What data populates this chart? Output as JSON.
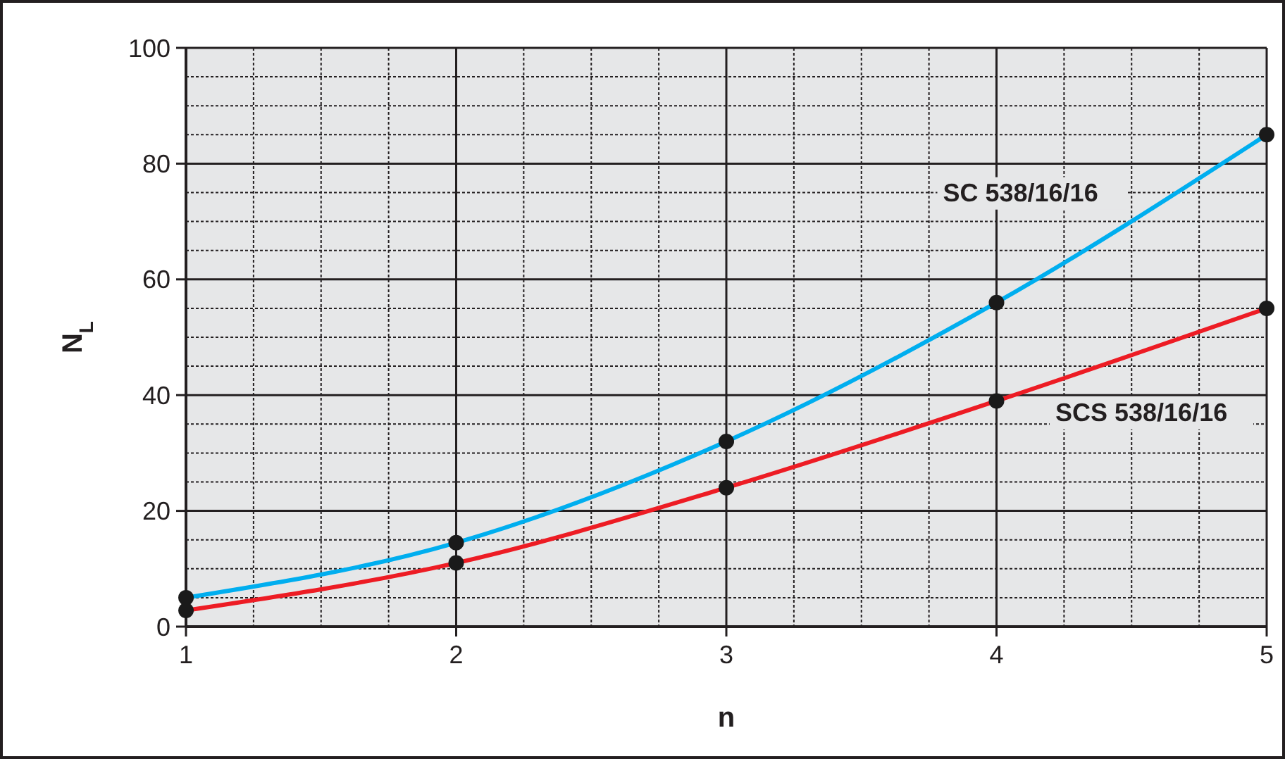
{
  "chart_data": {
    "type": "line",
    "xlabel": "n",
    "ylabel": "N$_{L}$",
    "x": [
      1,
      2,
      3,
      4,
      5
    ],
    "series": [
      {
        "name": "SC 538/16/16",
        "color": "#00aeef",
        "values": [
          5,
          14.5,
          32,
          56,
          85
        ]
      },
      {
        "name": "SCS 538/16/16",
        "color": "#ed1c24",
        "values": [
          2.8,
          11,
          24,
          39,
          55
        ]
      }
    ],
    "xlim": [
      1,
      5
    ],
    "xticks": [
      1,
      {
        "value": 1.25,
        "label": null
      },
      {
        "value": 1.5,
        "label": null
      },
      {
        "value": 1.75,
        "label": null
      },
      2,
      {
        "value": 2.25,
        "label": null
      },
      {
        "value": 2.5,
        "label": null
      },
      {
        "value": 2.75,
        "label": null
      },
      3,
      {
        "value": 3.25,
        "label": null
      },
      {
        "value": 3.5,
        "label": null
      },
      {
        "value": 3.75,
        "label": null
      },
      4,
      {
        "value": 4.25,
        "label": null
      },
      {
        "value": 4.5,
        "label": null
      },
      {
        "value": 4.75,
        "label": null
      },
      5
    ],
    "ylim": [
      0,
      100
    ],
    "yticks": [
      0,
      {
        "value": 5,
        "label": null
      },
      {
        "value": 10,
        "label": null
      },
      {
        "value": 15,
        "label": null
      },
      20,
      {
        "value": 25,
        "label": null
      },
      {
        "value": 30,
        "label": null
      },
      {
        "value": 35,
        "label": null
      },
      40,
      {
        "value": 45,
        "label": null
      },
      {
        "value": 50,
        "label": null
      },
      {
        "value": 55,
        "label": null
      },
      60,
      {
        "value": 65,
        "label": null
      },
      {
        "value": 70,
        "label": null
      },
      {
        "value": 75,
        "label": null
      },
      80,
      {
        "value": 85,
        "label": null
      },
      {
        "value": 90,
        "label": null
      },
      {
        "value": 95,
        "label": null
      },
      100
    ],
    "grid": true,
    "marker": "circle",
    "line_style": "solid"
  }
}
